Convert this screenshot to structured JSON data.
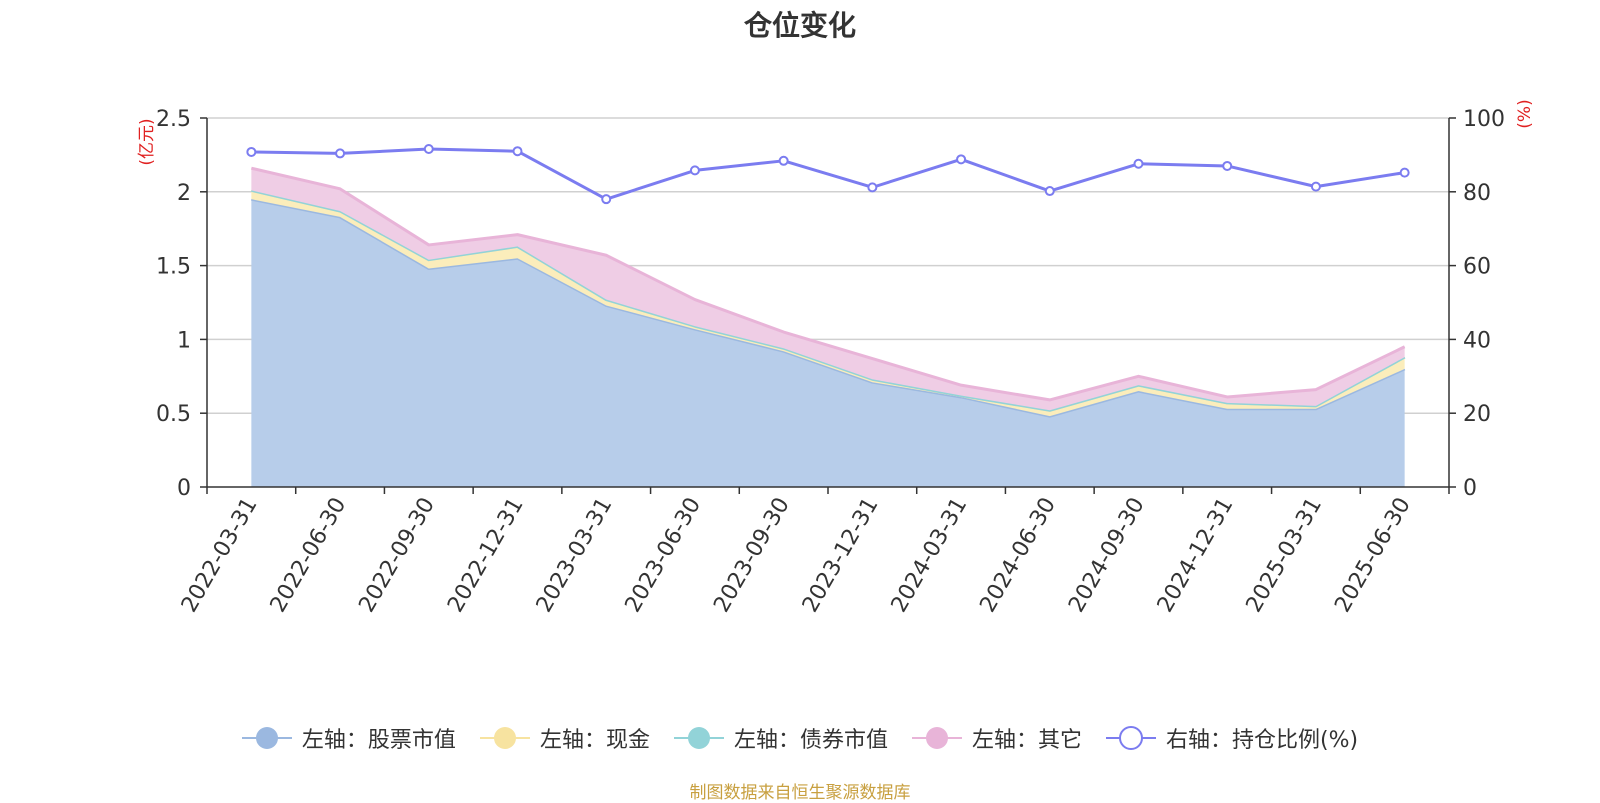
{
  "chart_data": {
    "type": "area",
    "title": "仓位变化",
    "x": [
      "2022-03-31",
      "2022-06-30",
      "2022-09-30",
      "2022-12-31",
      "2023-03-31",
      "2023-06-30",
      "2023-09-30",
      "2023-12-31",
      "2024-03-31",
      "2024-06-30",
      "2024-09-30",
      "2024-12-31",
      "2025-03-31",
      "2025-06-30"
    ],
    "left_axis": {
      "unit_label": "(亿元)",
      "ylim": [
        0,
        2.5
      ],
      "ticks": [
        "0",
        "0.5",
        "1",
        "1.5",
        "2",
        "2.5"
      ]
    },
    "right_axis": {
      "unit_label": "(%)",
      "ylim": [
        0,
        100
      ],
      "ticks": [
        "0",
        "20",
        "40",
        "60",
        "80",
        "100"
      ]
    },
    "series": [
      {
        "name": "左轴：股票市值",
        "axis": "left",
        "stack": "total",
        "color": "#9bb8e0",
        "fill": "#b7cdea",
        "values": [
          1.95,
          1.83,
          1.48,
          1.55,
          1.23,
          1.07,
          0.92,
          0.71,
          0.61,
          0.48,
          0.65,
          0.53,
          0.53,
          0.8
        ]
      },
      {
        "name": "左轴：现金",
        "axis": "left",
        "stack": "total",
        "color": "#f7e3a0",
        "fill": "#fbedbb",
        "values": [
          0.06,
          0.04,
          0.06,
          0.08,
          0.04,
          0.02,
          0.02,
          0.02,
          0.01,
          0.04,
          0.04,
          0.04,
          0.02,
          0.08
        ]
      },
      {
        "name": "左轴：债券市值",
        "axis": "left",
        "stack": "total",
        "color": "#92d3d8",
        "fill": "#b5e2e5",
        "values": [
          0,
          0,
          0,
          0,
          0,
          0,
          0,
          0,
          0,
          0,
          0,
          0,
          0,
          0
        ]
      },
      {
        "name": "左轴：其它",
        "axis": "left",
        "stack": "total",
        "color": "#e8b4d8",
        "fill": "#efcde5",
        "values": [
          0.15,
          0.15,
          0.1,
          0.08,
          0.3,
          0.18,
          0.11,
          0.14,
          0.07,
          0.07,
          0.06,
          0.04,
          0.11,
          0.07
        ]
      },
      {
        "name": "右轴：持仓比例(%)",
        "axis": "right",
        "type": "line",
        "color": "#7b7cf0",
        "values": [
          90.8,
          90.4,
          91.6,
          91.0,
          78.0,
          85.8,
          88.4,
          81.2,
          88.8,
          80.2,
          87.6,
          87.0,
          81.4,
          85.2
        ]
      }
    ],
    "grid": true,
    "legend_position": "bottom"
  },
  "colors": {
    "axis_unit_label": "#e02020",
    "source_text": "#c8a040",
    "axis": "#333333",
    "grid": "#d0d0d0",
    "tick_text": "#333333"
  },
  "footer": {
    "source": "制图数据来自恒生聚源数据库"
  }
}
